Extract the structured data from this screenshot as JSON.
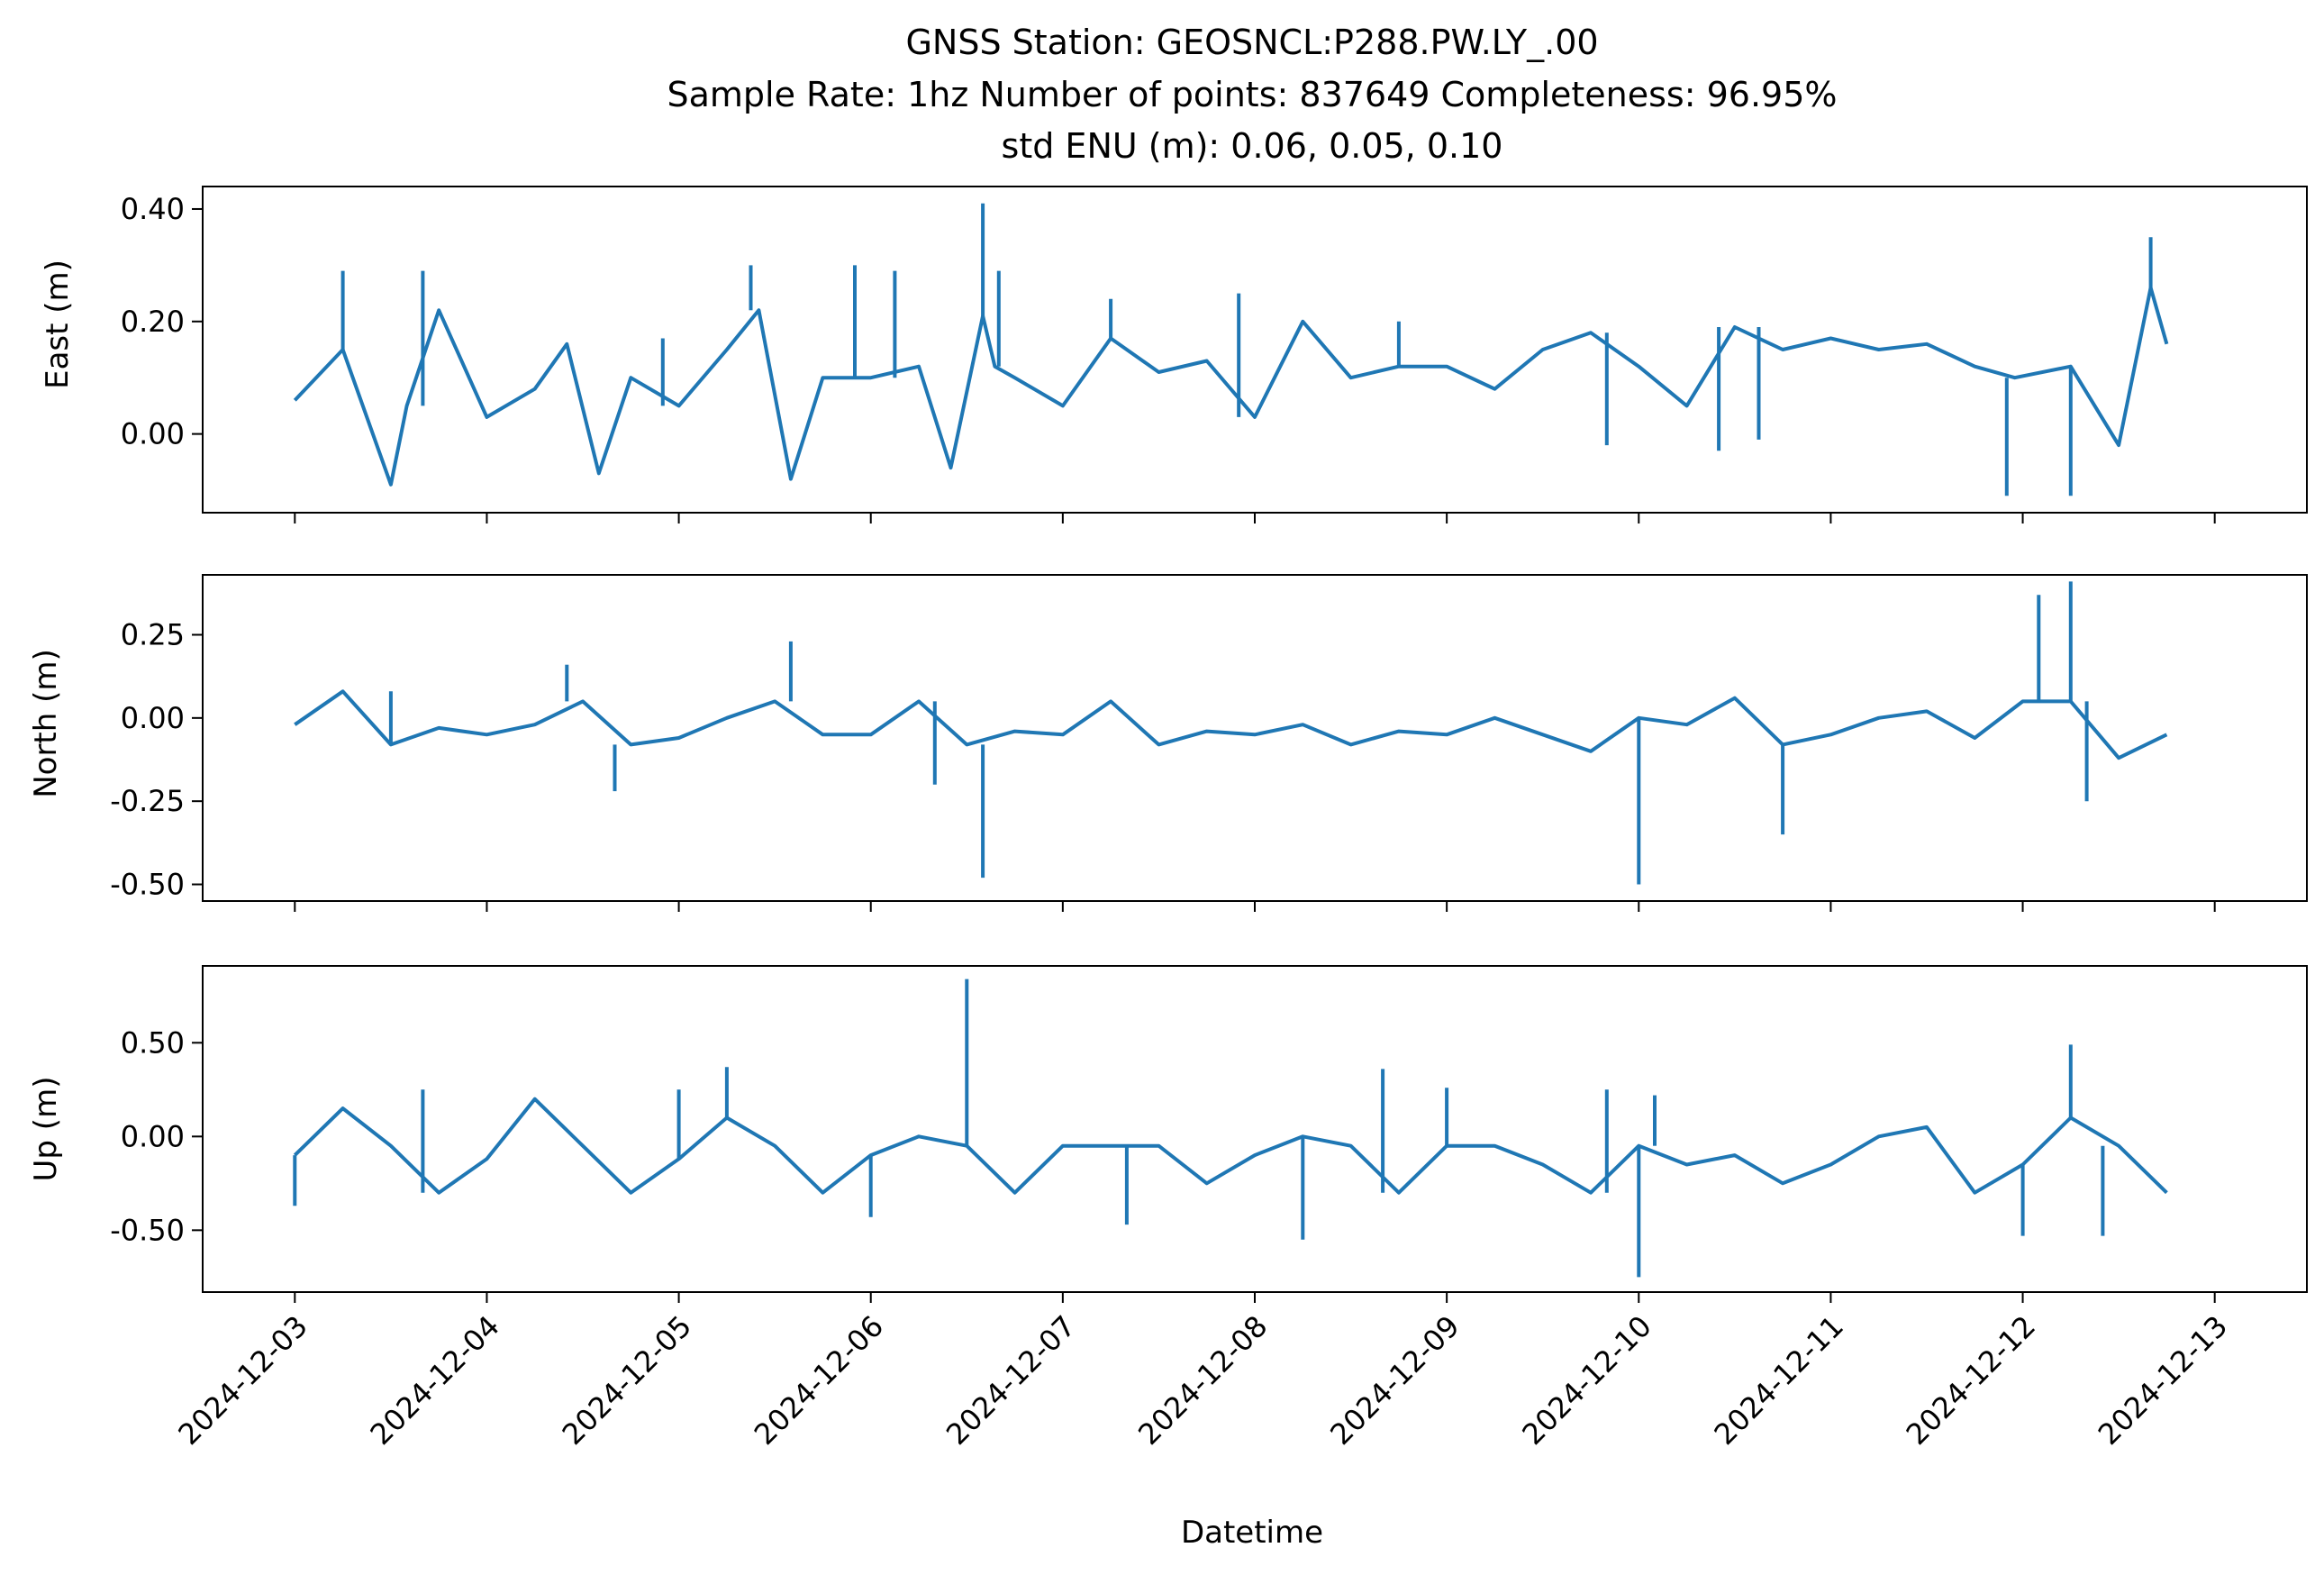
{
  "chart_data": [
    {
      "type": "line",
      "ylabel": "East (m)",
      "ylim": [
        -0.14,
        0.44
      ],
      "yticks": [
        0.0,
        0.2,
        0.4
      ],
      "ytick_labels": [
        "0.00",
        "0.20",
        "0.40"
      ],
      "series": [
        {
          "color": "#1f77b4",
          "x": [
            "2024-12-03 00:00",
            "2024-12-03 06:00",
            "2024-12-03 12:00",
            "2024-12-03 14:00",
            "2024-12-03 18:00",
            "2024-12-04 00:00",
            "2024-12-04 06:00",
            "2024-12-04 10:00",
            "2024-12-04 14:00",
            "2024-12-04 18:00",
            "2024-12-05 00:00",
            "2024-12-05 06:00",
            "2024-12-05 10:00",
            "2024-12-05 14:00",
            "2024-12-05 18:00",
            "2024-12-06 00:00",
            "2024-12-06 06:00",
            "2024-12-06 10:00",
            "2024-12-06 14:00",
            "2024-12-06 15:30",
            "2024-12-06 18:00",
            "2024-12-07 00:00",
            "2024-12-07 06:00",
            "2024-12-07 12:00",
            "2024-12-07 18:00",
            "2024-12-08 00:00",
            "2024-12-08 06:00",
            "2024-12-08 12:00",
            "2024-12-08 18:00",
            "2024-12-09 00:00",
            "2024-12-09 06:00",
            "2024-12-09 12:00",
            "2024-12-09 18:00",
            "2024-12-10 00:00",
            "2024-12-10 06:00",
            "2024-12-10 12:00",
            "2024-12-10 18:00",
            "2024-12-11 00:00",
            "2024-12-11 06:00",
            "2024-12-11 12:00",
            "2024-12-11 18:00",
            "2024-12-11 23:00",
            "2024-12-12 06:00",
            "2024-12-12 12:00",
            "2024-12-12 16:00",
            "2024-12-12 18:00"
          ],
          "y": [
            0.06,
            0.15,
            -0.09,
            0.05,
            0.22,
            0.03,
            0.08,
            0.16,
            -0.07,
            0.1,
            0.05,
            0.15,
            0.22,
            -0.08,
            0.1,
            0.1,
            0.12,
            -0.06,
            0.21,
            0.12,
            0.1,
            0.05,
            0.17,
            0.11,
            0.13,
            0.03,
            0.2,
            0.1,
            0.12,
            0.12,
            0.08,
            0.15,
            0.18,
            0.12,
            0.05,
            0.19,
            0.15,
            0.17,
            0.15,
            0.16,
            0.12,
            0.1,
            0.12,
            -0.02,
            0.26,
            0.16
          ]
        }
      ],
      "spikes": [
        {
          "x": "2024-12-03 06:00",
          "y": 0.29
        },
        {
          "x": "2024-12-03 16:00",
          "y": 0.29
        },
        {
          "x": "2024-12-04 22:00",
          "y": 0.17
        },
        {
          "x": "2024-12-05 09:00",
          "y": 0.3
        },
        {
          "x": "2024-12-06 14:00",
          "y": 0.41
        },
        {
          "x": "2024-12-06 16:00",
          "y": 0.29
        },
        {
          "x": "2024-12-05 22:00",
          "y": 0.3
        },
        {
          "x": "2024-12-06 03:00",
          "y": 0.29
        },
        {
          "x": "2024-12-07 06:00",
          "y": 0.24
        },
        {
          "x": "2024-12-07 22:00",
          "y": 0.25
        },
        {
          "x": "2024-12-08 18:00",
          "y": 0.2
        },
        {
          "x": "2024-12-09 20:00",
          "y": -0.02
        },
        {
          "x": "2024-12-10 10:00",
          "y": -0.03
        },
        {
          "x": "2024-12-10 15:00",
          "y": -0.01
        },
        {
          "x": "2024-12-11 22:00",
          "y": -0.11
        },
        {
          "x": "2024-12-12 06:00",
          "y": -0.11
        },
        {
          "x": "2024-12-12 16:00",
          "y": 0.35
        }
      ]
    },
    {
      "type": "line",
      "ylabel": "North (m)",
      "ylim": [
        -0.55,
        0.43
      ],
      "yticks": [
        -0.5,
        -0.25,
        0.0,
        0.25
      ],
      "ytick_labels": [
        "-0.50",
        "-0.25",
        "0.00",
        "0.25"
      ],
      "series": [
        {
          "color": "#1f77b4",
          "x": [
            "2024-12-03 00:00",
            "2024-12-03 06:00",
            "2024-12-03 12:00",
            "2024-12-03 18:00",
            "2024-12-04 00:00",
            "2024-12-04 06:00",
            "2024-12-04 12:00",
            "2024-12-04 18:00",
            "2024-12-05 00:00",
            "2024-12-05 06:00",
            "2024-12-05 12:00",
            "2024-12-05 18:00",
            "2024-12-06 00:00",
            "2024-12-06 06:00",
            "2024-12-06 12:00",
            "2024-12-06 18:00",
            "2024-12-07 00:00",
            "2024-12-07 06:00",
            "2024-12-07 12:00",
            "2024-12-07 18:00",
            "2024-12-08 00:00",
            "2024-12-08 06:00",
            "2024-12-08 12:00",
            "2024-12-08 18:00",
            "2024-12-09 00:00",
            "2024-12-09 06:00",
            "2024-12-09 12:00",
            "2024-12-09 18:00",
            "2024-12-10 00:00",
            "2024-12-10 06:00",
            "2024-12-10 12:00",
            "2024-12-10 18:00",
            "2024-12-11 00:00",
            "2024-12-11 06:00",
            "2024-12-11 12:00",
            "2024-12-11 18:00",
            "2024-12-12 00:00",
            "2024-12-12 06:00",
            "2024-12-12 12:00",
            "2024-12-12 18:00"
          ],
          "y": [
            -0.02,
            0.08,
            -0.08,
            -0.03,
            -0.05,
            -0.02,
            0.05,
            -0.08,
            -0.06,
            0.0,
            0.05,
            -0.05,
            -0.05,
            0.05,
            -0.08,
            -0.04,
            -0.05,
            0.05,
            -0.08,
            -0.04,
            -0.05,
            -0.02,
            -0.08,
            -0.04,
            -0.05,
            0.0,
            -0.05,
            -0.1,
            0.0,
            -0.02,
            0.06,
            -0.08,
            -0.05,
            0.0,
            0.02,
            -0.06,
            0.05,
            0.05,
            -0.12,
            -0.05
          ]
        }
      ],
      "spikes": [
        {
          "x": "2024-12-03 12:00",
          "y": 0.08
        },
        {
          "x": "2024-12-04 10:00",
          "y": 0.16
        },
        {
          "x": "2024-12-04 16:00",
          "y": -0.22
        },
        {
          "x": "2024-12-05 14:00",
          "y": 0.23
        },
        {
          "x": "2024-12-06 14:00",
          "y": -0.48
        },
        {
          "x": "2024-12-06 08:00",
          "y": -0.2
        },
        {
          "x": "2024-12-10 00:00",
          "y": -0.5
        },
        {
          "x": "2024-12-10 18:00",
          "y": -0.35
        },
        {
          "x": "2024-12-12 02:00",
          "y": 0.37
        },
        {
          "x": "2024-12-12 06:00",
          "y": 0.41
        },
        {
          "x": "2024-12-12 08:00",
          "y": -0.25
        }
      ]
    },
    {
      "type": "line",
      "ylabel": "Up (m)",
      "xlabel": "Datetime",
      "ylim": [
        -0.83,
        0.91
      ],
      "yticks": [
        -0.5,
        0.0,
        0.5
      ],
      "ytick_labels": [
        "-0.50",
        "0.00",
        "0.50"
      ],
      "xticks": [
        "2024-12-03",
        "2024-12-04",
        "2024-12-05",
        "2024-12-06",
        "2024-12-07",
        "2024-12-08",
        "2024-12-09",
        "2024-12-10",
        "2024-12-11",
        "2024-12-12",
        "2024-12-13"
      ],
      "series": [
        {
          "color": "#1f77b4",
          "x": [
            "2024-12-03 00:00",
            "2024-12-03 06:00",
            "2024-12-03 12:00",
            "2024-12-03 18:00",
            "2024-12-04 00:00",
            "2024-12-04 06:00",
            "2024-12-04 12:00",
            "2024-12-04 18:00",
            "2024-12-05 00:00",
            "2024-12-05 06:00",
            "2024-12-05 12:00",
            "2024-12-05 18:00",
            "2024-12-06 00:00",
            "2024-12-06 06:00",
            "2024-12-06 12:00",
            "2024-12-06 18:00",
            "2024-12-07 00:00",
            "2024-12-07 06:00",
            "2024-12-07 12:00",
            "2024-12-07 18:00",
            "2024-12-08 00:00",
            "2024-12-08 06:00",
            "2024-12-08 12:00",
            "2024-12-08 18:00",
            "2024-12-09 00:00",
            "2024-12-09 06:00",
            "2024-12-09 12:00",
            "2024-12-09 18:00",
            "2024-12-10 00:00",
            "2024-12-10 06:00",
            "2024-12-10 12:00",
            "2024-12-10 18:00",
            "2024-12-11 00:00",
            "2024-12-11 06:00",
            "2024-12-11 12:00",
            "2024-12-11 18:00",
            "2024-12-12 00:00",
            "2024-12-12 06:00",
            "2024-12-12 12:00",
            "2024-12-12 18:00"
          ],
          "y": [
            -0.1,
            0.15,
            -0.05,
            -0.3,
            -0.12,
            0.2,
            -0.05,
            -0.3,
            -0.12,
            0.1,
            -0.05,
            -0.3,
            -0.1,
            0.0,
            -0.05,
            -0.3,
            -0.05,
            -0.05,
            -0.05,
            -0.25,
            -0.1,
            0.0,
            -0.05,
            -0.3,
            -0.05,
            -0.05,
            -0.15,
            -0.3,
            -0.05,
            -0.15,
            -0.1,
            -0.25,
            -0.15,
            0.0,
            0.05,
            -0.3,
            -0.15,
            0.1,
            -0.05,
            -0.3
          ]
        }
      ],
      "spikes": [
        {
          "x": "2024-12-03 00:00",
          "y": -0.37
        },
        {
          "x": "2024-12-03 16:00",
          "y": 0.25
        },
        {
          "x": "2024-12-05 00:00",
          "y": 0.25
        },
        {
          "x": "2024-12-05 06:00",
          "y": 0.37
        },
        {
          "x": "2024-12-06 00:00",
          "y": -0.43
        },
        {
          "x": "2024-12-06 12:00",
          "y": 0.84
        },
        {
          "x": "2024-12-07 08:00",
          "y": -0.47
        },
        {
          "x": "2024-12-08 06:00",
          "y": -0.55
        },
        {
          "x": "2024-12-08 16:00",
          "y": 0.36
        },
        {
          "x": "2024-12-09 00:00",
          "y": 0.26
        },
        {
          "x": "2024-12-09 20:00",
          "y": 0.25
        },
        {
          "x": "2024-12-10 00:00",
          "y": -0.75
        },
        {
          "x": "2024-12-10 02:00",
          "y": 0.22
        },
        {
          "x": "2024-12-12 00:00",
          "y": -0.53
        },
        {
          "x": "2024-12-12 06:00",
          "y": 0.49
        },
        {
          "x": "2024-12-12 10:00",
          "y": -0.53
        }
      ]
    }
  ],
  "title_lines": [
    "GNSS Station: GEOSNCL:P288.PW.LY_.00",
    "Sample Rate: 1hz   Number of points: 837649    Completeness:  96.95%",
    "std ENU (m):  0.06, 0.05, 0.10"
  ]
}
